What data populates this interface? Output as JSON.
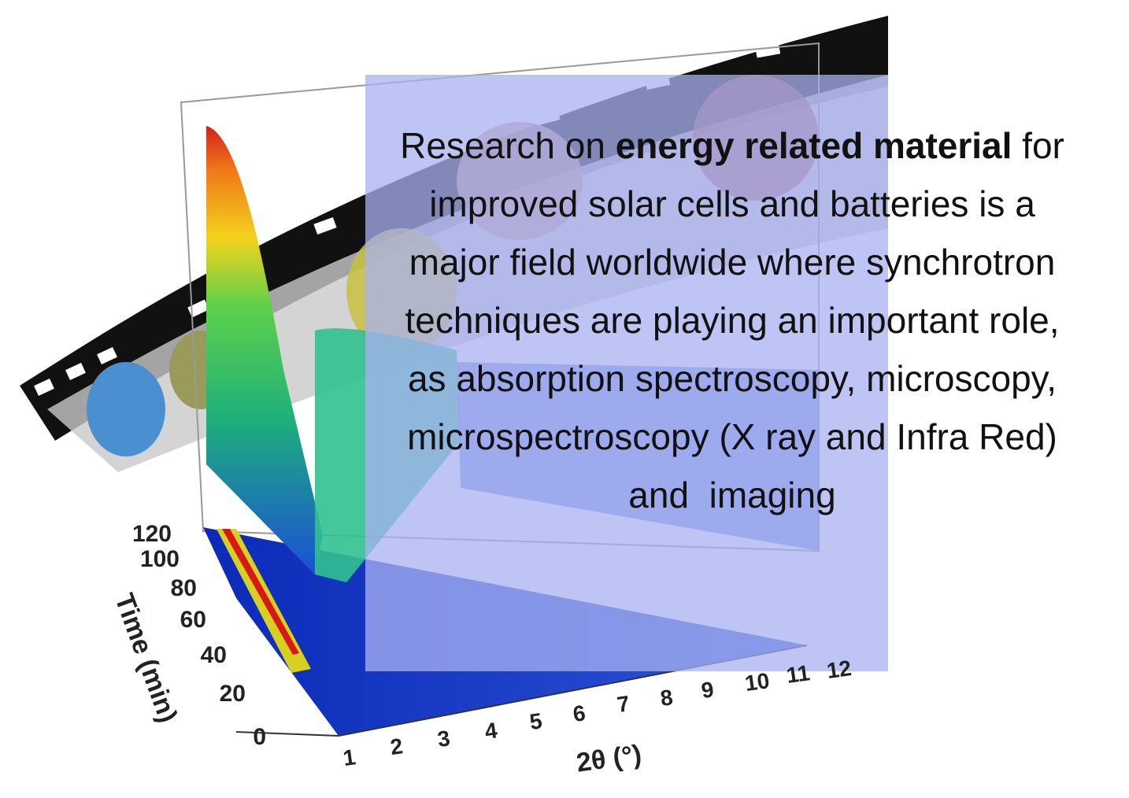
{
  "caption": {
    "parts": [
      {
        "text": "Research on ",
        "bold": false
      },
      {
        "text": "energy related material",
        "bold": true
      },
      {
        "text": " for improved solar cells and batteries is a major field worldwide where synchrotron techniques are playing an important role, as absorption spectroscopy, microscopy, microspectroscopy (X ray and Infra Red) and  imaging",
        "bold": false
      }
    ]
  },
  "figure": {
    "y_axis_label": "Time (min)",
    "y_ticks": [
      "120",
      "100",
      "80",
      "60",
      "40",
      "20",
      "0"
    ],
    "x_axis_label": "2θ (°)",
    "x_ticks": [
      "1",
      "2",
      "3",
      "4",
      "5",
      "6",
      "7",
      "8",
      "9",
      "10",
      "11",
      "12"
    ]
  }
}
